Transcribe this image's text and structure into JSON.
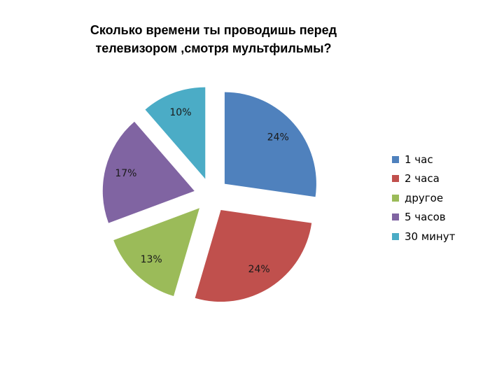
{
  "chart_data": {
    "type": "pie",
    "title_lines": [
      "Сколько времени ты проводишь перед",
      "телевизором ,смотря мультфильмы?"
    ],
    "categories": [
      "1 час",
      "2 часа",
      "другое",
      "5 часов",
      "30 минут"
    ],
    "values": [
      24,
      24,
      13,
      17,
      10
    ],
    "data_labels": [
      "24%",
      "24%",
      "13%",
      "17%",
      "10%"
    ],
    "colors": [
      "#4f81bd",
      "#c0504d",
      "#9bbb59",
      "#8064a2",
      "#4bacc6"
    ],
    "exploded": true,
    "legend": "right"
  }
}
